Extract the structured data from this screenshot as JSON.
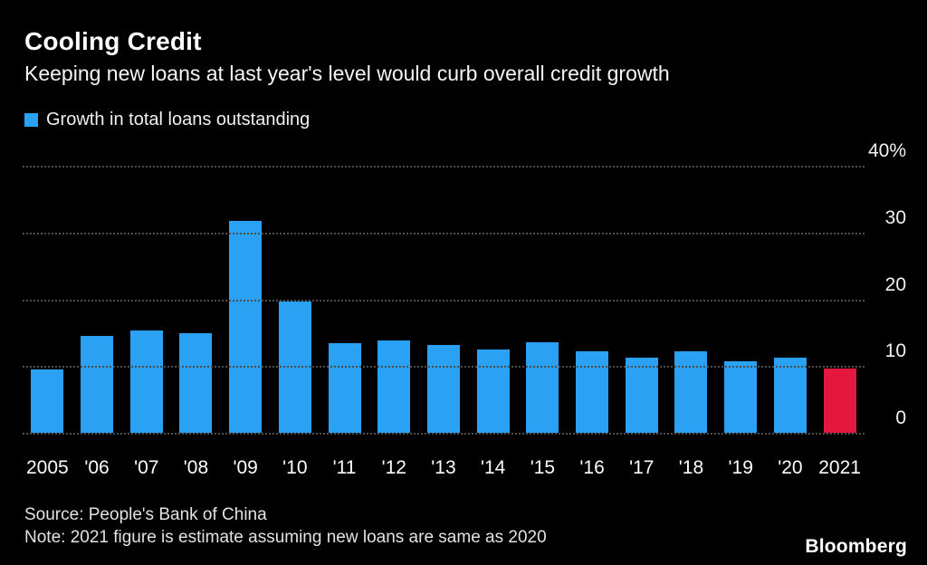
{
  "header": {
    "title": "Cooling Credit",
    "subtitle": "Keeping new loans at last year's level would curb overall credit growth"
  },
  "legend": {
    "label": "Growth in total loans outstanding",
    "color": "#2aa1f2"
  },
  "chart_data": {
    "type": "bar",
    "title": "Cooling Credit",
    "subtitle": "Keeping new loans at last year's level would curb overall credit growth",
    "series_name": "Growth in total loans outstanding",
    "categories": [
      "2005",
      "'06",
      "'07",
      "'08",
      "'09",
      "'10",
      "'11",
      "'12",
      "'13",
      "'14",
      "'15",
      "'16",
      "'17",
      "'18",
      "'19",
      "'20",
      "2021"
    ],
    "values": [
      9.5,
      14.5,
      15.3,
      14.9,
      31.7,
      19.7,
      13.4,
      13.9,
      13.1,
      12.5,
      13.5,
      12.2,
      11.3,
      12.2,
      10.7,
      11.3,
      9.6
    ],
    "unit": "%",
    "ylim": [
      0,
      40
    ],
    "yticks": [
      0,
      10,
      20,
      30,
      40
    ],
    "ytick_labels": [
      "0",
      "10",
      "20",
      "30",
      "40%"
    ],
    "grid": "dotted horizontal",
    "legend_position": "top-left",
    "colors": {
      "default": "#2aa1f2",
      "highlight": "#e4183c",
      "background": "#000000",
      "gridline": "#4d4d4d"
    },
    "highlight_index": 16,
    "highlight_meaning": "2021 estimate bar shown in red"
  },
  "footer": {
    "source": "Source: People's Bank of China",
    "note": "Note: 2021 figure is estimate assuming new loans are same as 2020",
    "brand": "Bloomberg"
  }
}
